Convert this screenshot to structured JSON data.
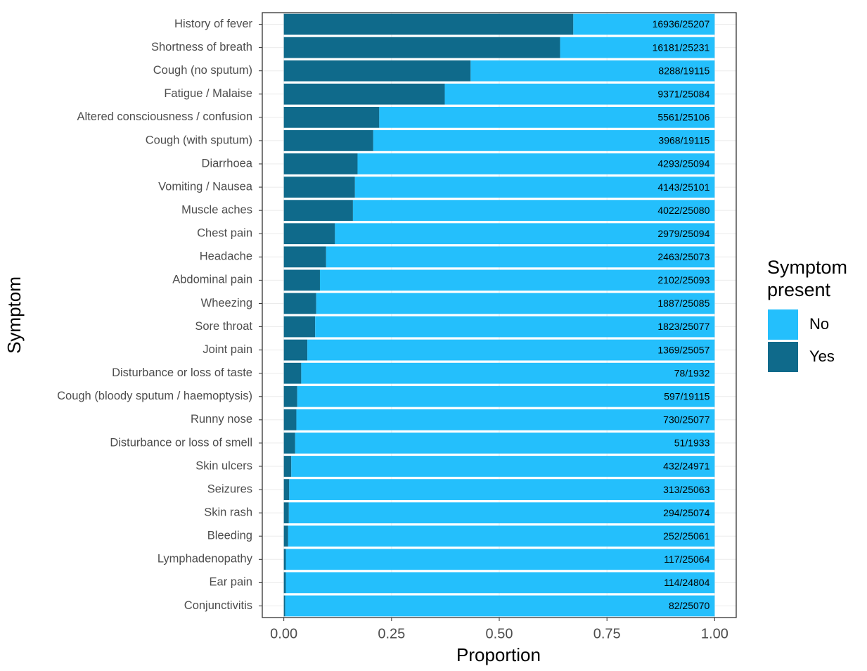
{
  "chart_data": {
    "type": "stacked_barh",
    "x_label": "Proportion",
    "y_label": "Symptom",
    "legend_title": "Symptom\npresent",
    "categories": [
      "History of fever",
      "Shortness of breath",
      "Cough (no sputum)",
      "Fatigue / Malaise",
      "Altered consciousness / confusion",
      "Cough (with sputum)",
      "Diarrhoea",
      "Vomiting / Nausea",
      "Muscle aches",
      "Chest pain",
      "Headache",
      "Abdominal pain",
      "Wheezing",
      "Sore throat",
      "Joint pain",
      "Disturbance or loss of taste",
      "Cough (bloody sputum / haemoptysis)",
      "Runny nose",
      "Disturbance or loss of smell",
      "Skin ulcers",
      "Seizures",
      "Skin rash",
      "Bleeding",
      "Lymphadenopathy",
      "Ear pain",
      "Conjunctivitis"
    ],
    "series": [
      {
        "name": "No",
        "color": "#24bffc",
        "values": [
          0.3281,
          0.3587,
          0.5664,
          0.6264,
          0.7785,
          0.7924,
          0.8289,
          0.8349,
          0.8396,
          0.8813,
          0.9018,
          0.9162,
          0.9248,
          0.9273,
          0.9454,
          0.9596,
          0.9688,
          0.9709,
          0.9736,
          0.9827,
          0.9875,
          0.9883,
          0.9899,
          0.9953,
          0.9954,
          0.9967
        ]
      },
      {
        "name": "Yes",
        "color": "#0f6a8b",
        "values": [
          0.6719,
          0.6413,
          0.4336,
          0.3736,
          0.2215,
          0.2076,
          0.1711,
          0.1651,
          0.1604,
          0.1187,
          0.0982,
          0.0838,
          0.0752,
          0.0727,
          0.0546,
          0.0404,
          0.0312,
          0.0291,
          0.0264,
          0.0173,
          0.0125,
          0.0117,
          0.0101,
          0.0047,
          0.0046,
          0.0033
        ],
        "value_labels": [
          "16936/25207",
          "16181/25231",
          "8288/19115",
          "9371/25084",
          "5561/25106",
          "3968/19115",
          "4293/25094",
          "4143/25101",
          "4022/25080",
          "2979/25094",
          "2463/25073",
          "2102/25093",
          "1887/25085",
          "1823/25077",
          "1369/25057",
          "78/1932",
          "597/19115",
          "730/25077",
          "51/1933",
          "432/24971",
          "313/25063",
          "294/25074",
          "252/25061",
          "117/25064",
          "114/24804",
          "82/25070"
        ]
      }
    ],
    "xlim": [
      -0.05,
      1.05
    ],
    "xticks": [
      {
        "value": 0,
        "label": "0.00"
      },
      {
        "value": 0.25,
        "label": "0.25"
      },
      {
        "value": 0.5,
        "label": "0.50"
      },
      {
        "value": 0.75,
        "label": "0.75"
      },
      {
        "value": 1,
        "label": "1.00"
      }
    ],
    "grid": true,
    "legend": "right"
  }
}
